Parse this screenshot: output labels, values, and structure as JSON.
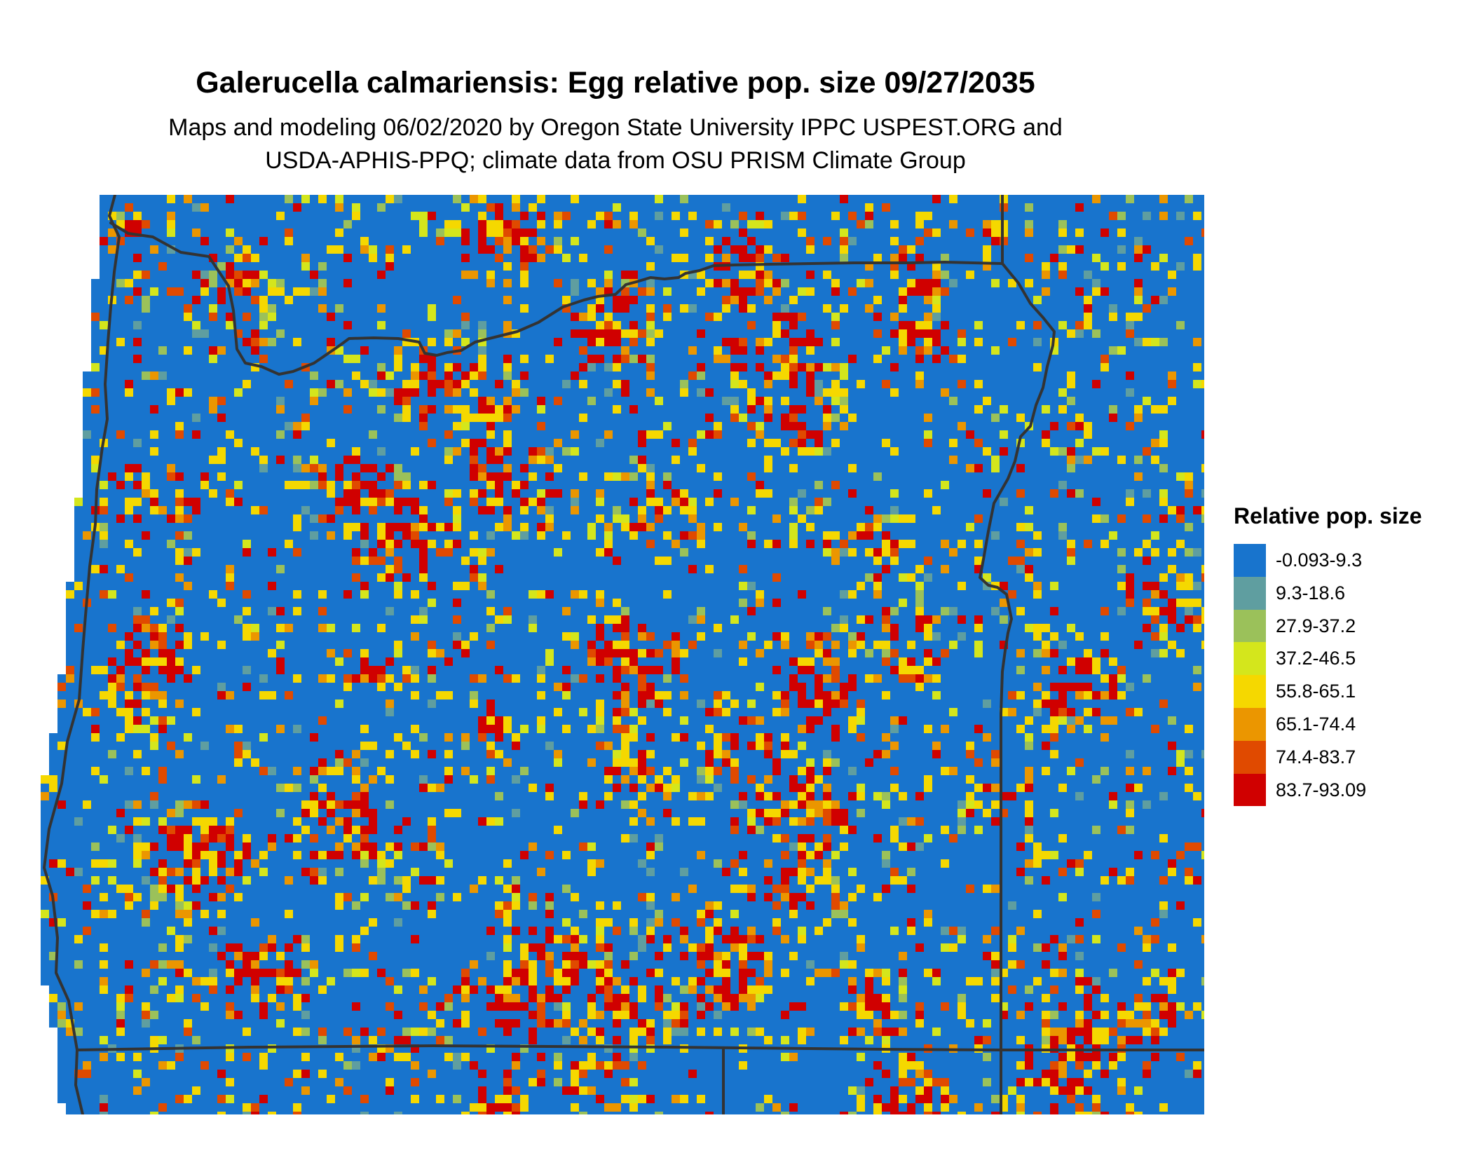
{
  "map": {
    "title": "Galerucella calmariensis: Egg relative pop. size 09/27/2035",
    "subtitle_line1": "Maps and modeling 06/02/2020 by Oregon State University IPPC USPEST.ORG and",
    "subtitle_line2": "USDA-APHIS-PPQ; climate data from OSU PRISM Climate Group",
    "region": "Oregon",
    "background_class_color": "#1874CD",
    "boundary_color": "#333333"
  },
  "legend": {
    "title": "Relative pop. size",
    "items": [
      {
        "label": "-0.093-9.3",
        "color": "#1874CD"
      },
      {
        "label": "9.3-18.6",
        "color": "#5F9EA0"
      },
      {
        "label": "27.9-37.2",
        "color": "#9BC15A"
      },
      {
        "label": "37.2-46.5",
        "color": "#D4E61C"
      },
      {
        "label": "55.8-65.1",
        "color": "#F5D800"
      },
      {
        "label": "65.1-74.4",
        "color": "#EB9600"
      },
      {
        "label": "74.4-83.7",
        "color": "#E04A00"
      },
      {
        "label": "83.7-93.09",
        "color": "#D00000"
      }
    ]
  }
}
